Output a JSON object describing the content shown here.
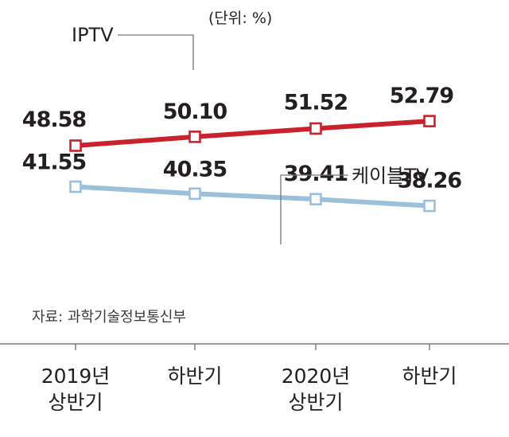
{
  "chart_data": {
    "type": "line",
    "unit": "(단위: %)",
    "source": "자료: 과학기술정보통신부",
    "categories": [
      [
        "2019년",
        "상반기"
      ],
      [
        "하반기"
      ],
      [
        "2020년",
        "상반기"
      ],
      [
        "하반기"
      ]
    ],
    "series": [
      {
        "name": "IPTV",
        "values": [
          48.58,
          50.1,
          51.52,
          52.79
        ],
        "labels": [
          "48.58",
          "50.10",
          "51.52",
          "52.79"
        ],
        "color": "#c8232c"
      },
      {
        "name": "케이블TV",
        "values": [
          41.55,
          40.35,
          39.41,
          38.26
        ],
        "labels": [
          "41.55",
          "40.35",
          "39.41",
          "38.26"
        ],
        "color": "#9bc0dc"
      }
    ],
    "grid": false,
    "legend": "callout labels"
  }
}
